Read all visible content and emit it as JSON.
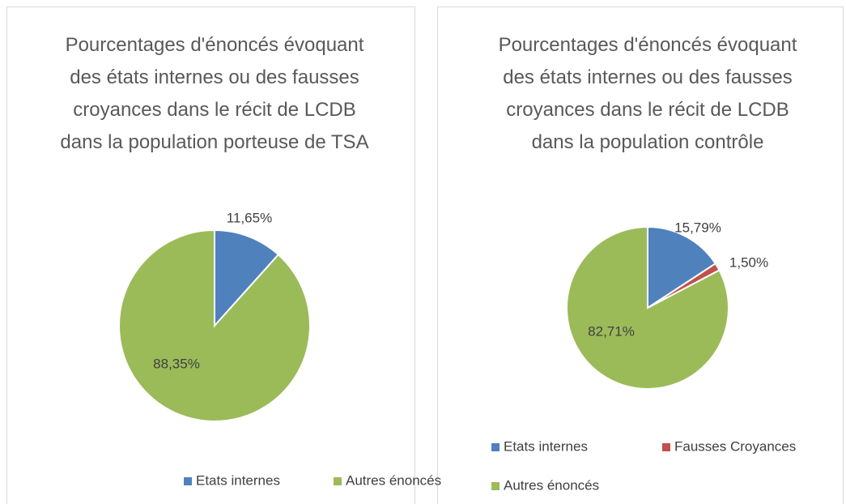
{
  "chart_data": [
    {
      "type": "pie",
      "title": "Pourcentages d'énoncés évoquant des états internes ou des fausses croyances dans le récit de LCDB dans la population porteuse de TSA",
      "categories": [
        "Etats internes",
        "Autres énoncés"
      ],
      "values": [
        11.65,
        88.35
      ],
      "value_labels": [
        "11,65%",
        "88,35%"
      ],
      "colors": [
        "#4f81bd",
        "#9bbb59"
      ],
      "legend": "bottom"
    },
    {
      "type": "pie",
      "title": "Pourcentages d'énoncés évoquant des états internes ou des fausses croyances dans le récit de LCDB dans la population contrôle",
      "categories": [
        "Etats internes",
        "Fausses Croyances",
        "Autres énoncés"
      ],
      "values": [
        15.79,
        1.5,
        82.71
      ],
      "value_labels": [
        "15,79%",
        "1,50%",
        "82,71%"
      ],
      "colors": [
        "#4f81bd",
        "#c0504d",
        "#9bbb59"
      ],
      "legend": "bottom"
    }
  ]
}
